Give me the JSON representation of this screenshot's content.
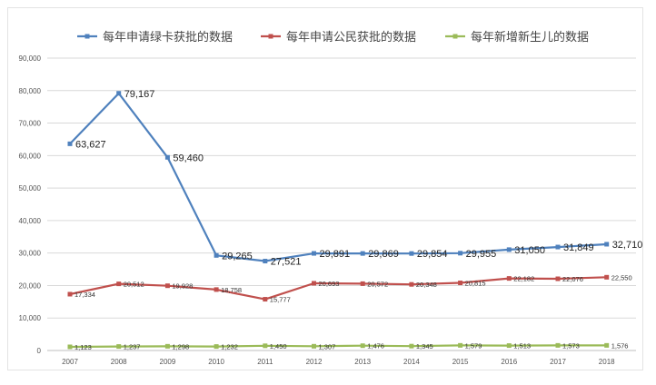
{
  "chart_data": {
    "type": "line",
    "title": "",
    "xlabel": "",
    "ylabel": "",
    "categories": [
      "2007",
      "2008",
      "2009",
      "2010",
      "2011",
      "2012",
      "2013",
      "2014",
      "2015",
      "2016",
      "2017",
      "2018"
    ],
    "ylim": [
      0,
      90000
    ],
    "yticks": [
      "0",
      "10,000",
      "20,000",
      "30,000",
      "40,000",
      "50,000",
      "60,000",
      "70,000",
      "80,000",
      "90,000"
    ],
    "grid": true,
    "legend_position": "top",
    "series": [
      {
        "name": "每年申请绿卡获批的数据",
        "color": "#4f81bd",
        "values": [
          63627,
          79167,
          59460,
          29265,
          27521,
          29891,
          29869,
          29854,
          29955,
          31050,
          31849,
          32710
        ],
        "labels": [
          "63,627",
          "79,167",
          "59,460",
          "29,265",
          "27,521",
          "29,891",
          "29,869",
          "29,854",
          "29,955",
          "31,050",
          "31,849",
          "32,710"
        ]
      },
      {
        "name": "每年申请公民获批的数据",
        "color": "#c0504d",
        "values": [
          17334,
          20512,
          19928,
          18758,
          15777,
          20693,
          20572,
          20348,
          20815,
          22182,
          22076,
          22550
        ],
        "labels": [
          "17,334",
          "20,512",
          "19,928",
          "18,758",
          "15,777",
          "20,693",
          "20,572",
          "20,348",
          "20,815",
          "22,182",
          "22,076",
          "22,550"
        ]
      },
      {
        "name": "每年新增新生儿的数据",
        "color": "#9bbb59",
        "values": [
          1123,
          1237,
          1298,
          1232,
          1450,
          1307,
          1476,
          1345,
          1579,
          1513,
          1573,
          1576
        ],
        "labels": [
          "1,123",
          "1,237",
          "1,298",
          "1,232",
          "1,450",
          "1,307",
          "1,476",
          "1,345",
          "1,579",
          "1,513",
          "1,573",
          "1,576"
        ]
      }
    ]
  }
}
